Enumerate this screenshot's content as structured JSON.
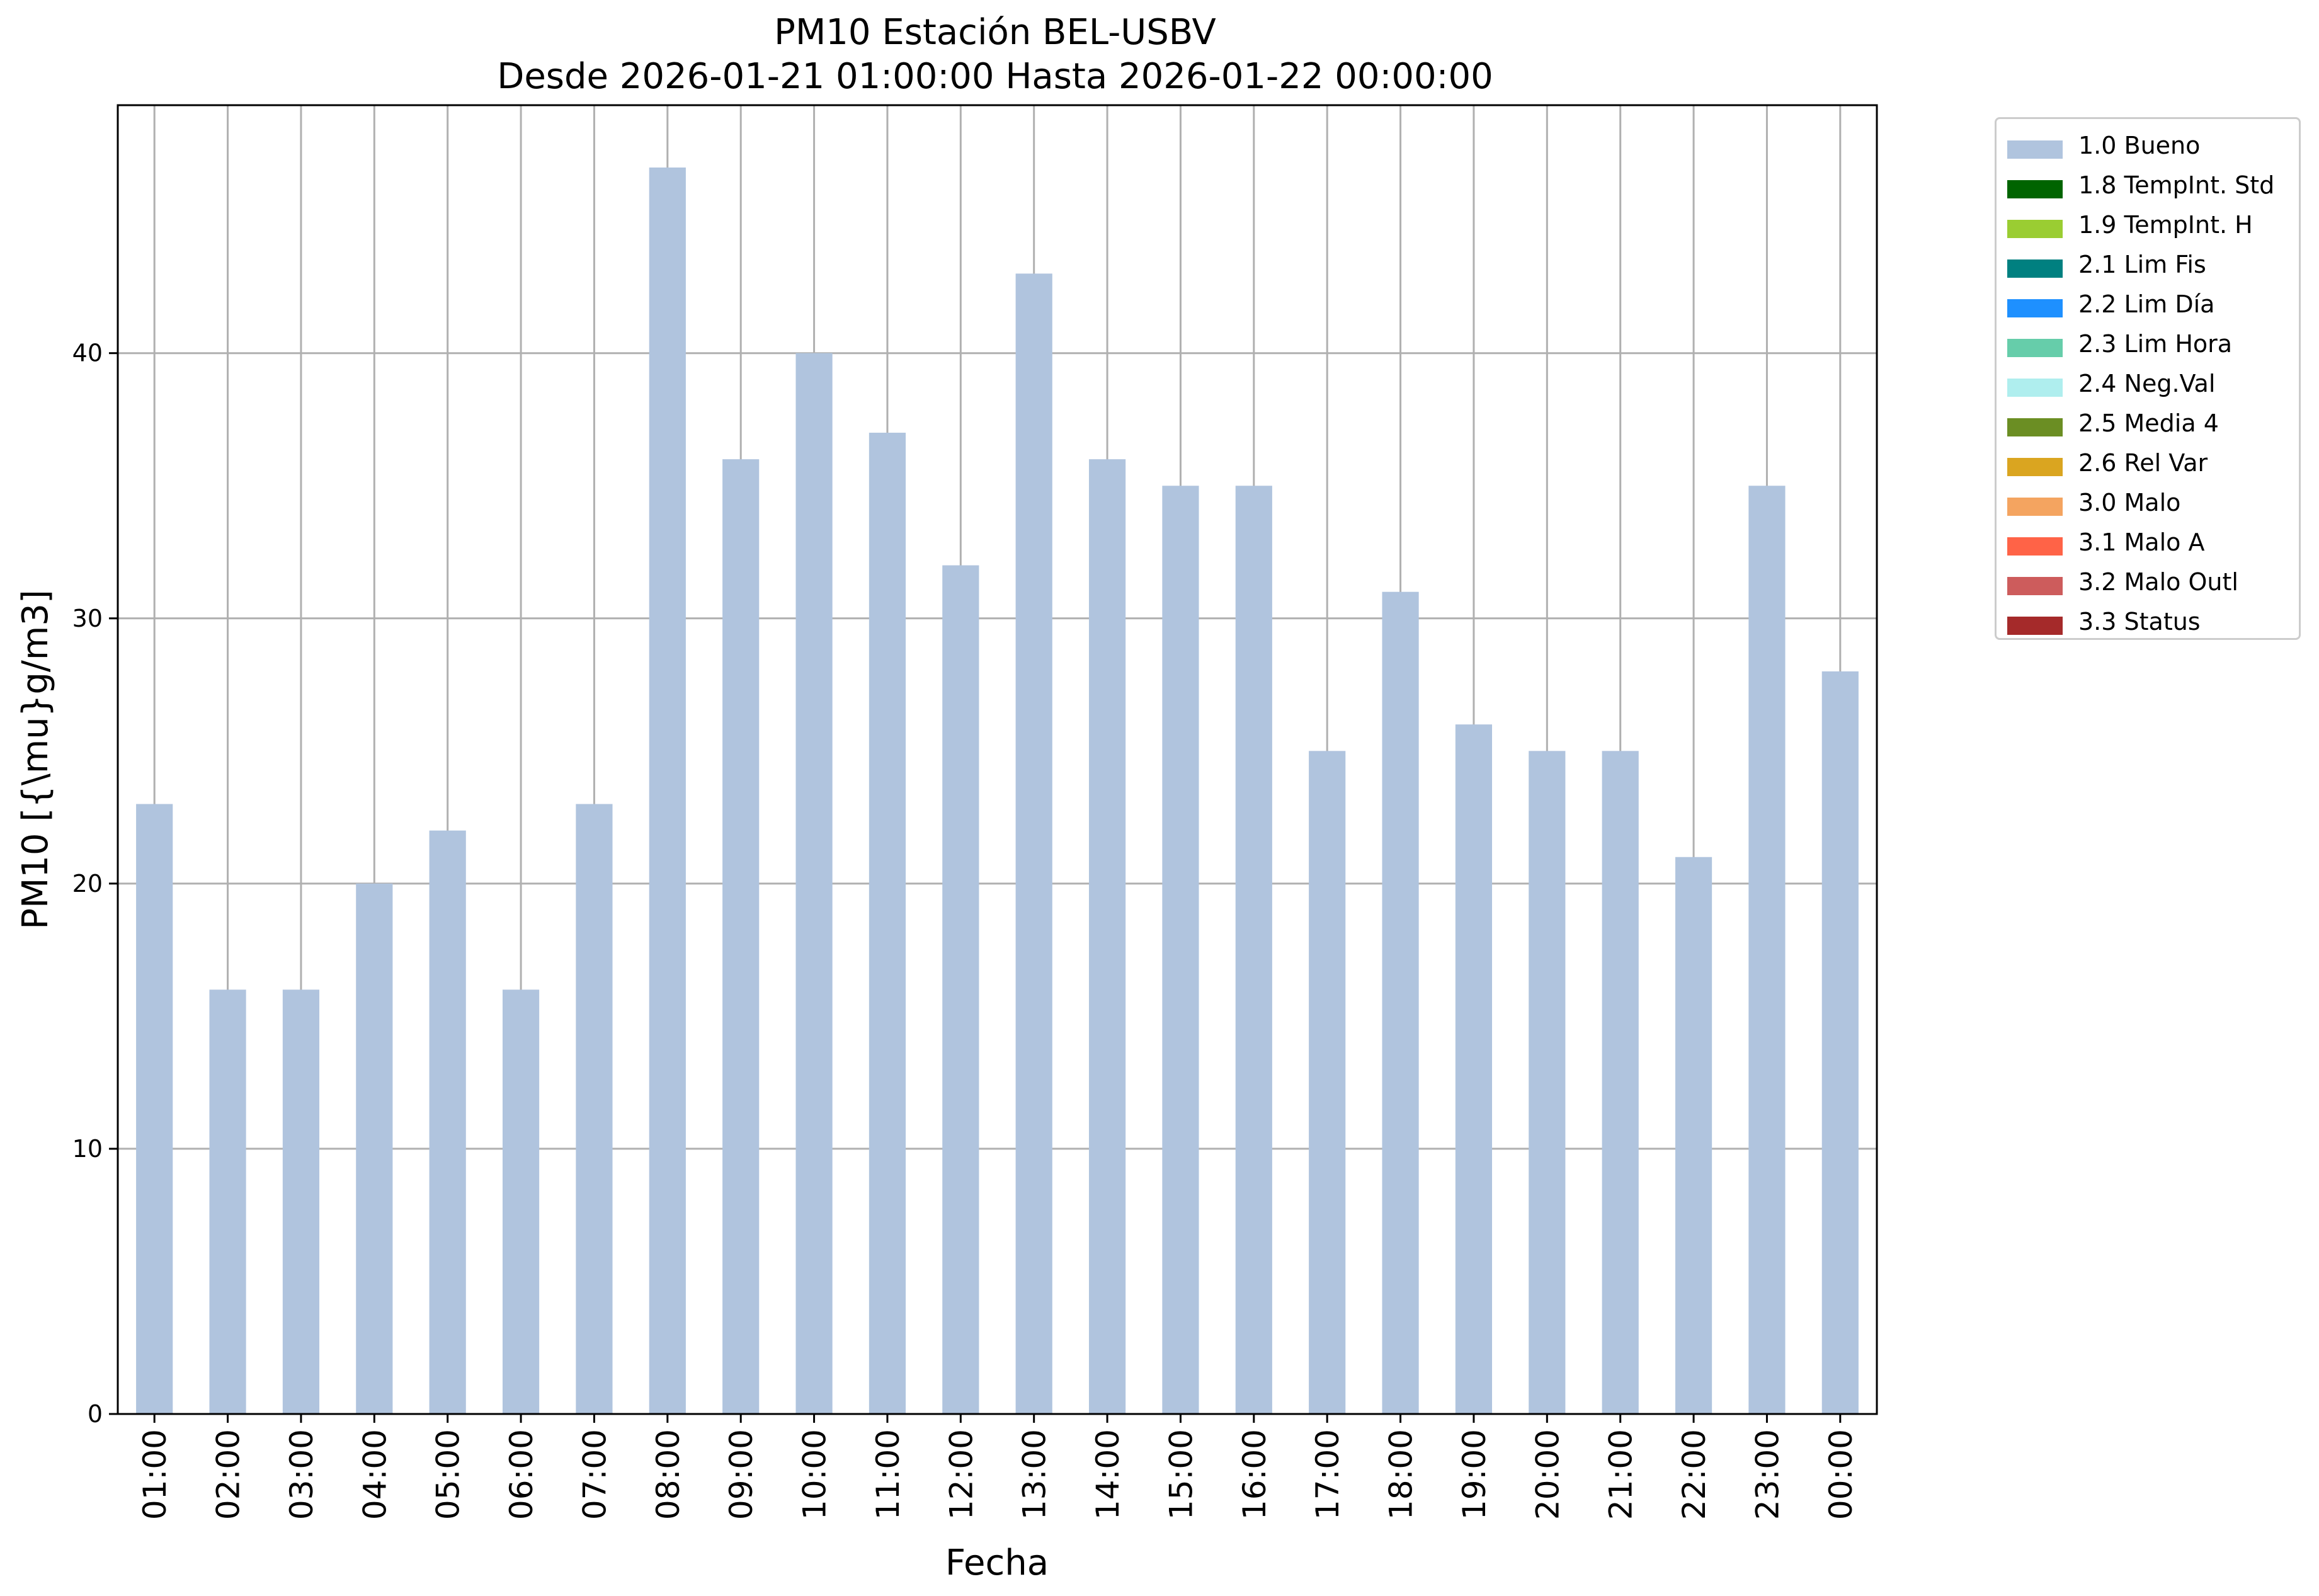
{
  "chart_data": {
    "type": "bar",
    "title": "PM10 Estación BEL-USBV",
    "subtitle": "Desde 2026-01-21 01:00:00 Hasta 2026-01-22 00:00:00",
    "xlabel": "Fecha",
    "ylabel": "PM10 [{\\mu}g/m3]",
    "categories": [
      "01:00",
      "02:00",
      "03:00",
      "04:00",
      "05:00",
      "06:00",
      "07:00",
      "08:00",
      "09:00",
      "10:00",
      "11:00",
      "12:00",
      "13:00",
      "14:00",
      "15:00",
      "16:00",
      "17:00",
      "18:00",
      "19:00",
      "20:00",
      "21:00",
      "22:00",
      "23:00",
      "00:00"
    ],
    "series": [
      {
        "name": "1.0 Bueno",
        "values": [
          23,
          16,
          16,
          20,
          22,
          16,
          23,
          47,
          36,
          40,
          37,
          32,
          43,
          36,
          35,
          35,
          25,
          31,
          26,
          25,
          25,
          21,
          35,
          28
        ]
      }
    ],
    "ylim": [
      0,
      49.35
    ],
    "yticks": [
      0,
      10,
      20,
      30,
      40
    ],
    "grid": true,
    "legend_position": "outside-top-right",
    "legend": [
      {
        "label": "1.0 Bueno",
        "color": "#b0c4de"
      },
      {
        "label": "1.8 TempInt. Std",
        "color": "#006400"
      },
      {
        "label": "1.9 TempInt. H",
        "color": "#9acd32"
      },
      {
        "label": "2.1 Lim Fis",
        "color": "#008080"
      },
      {
        "label": "2.2 Lim Día",
        "color": "#1e90ff"
      },
      {
        "label": "2.3 Lim Hora",
        "color": "#66cdaa"
      },
      {
        "label": "2.4 Neg.Val",
        "color": "#afeeee"
      },
      {
        "label": "2.5 Media 4",
        "color": "#6b8e23"
      },
      {
        "label": "2.6 Rel Var",
        "color": "#daa520"
      },
      {
        "label": "3.0 Malo",
        "color": "#f4a460"
      },
      {
        "label": "3.1 Malo A",
        "color": "#ff6347"
      },
      {
        "label": "3.2 Malo Outl",
        "color": "#cd5c5c"
      },
      {
        "label": "3.3 Status",
        "color": "#a52a2a"
      }
    ],
    "bar_color": "#b0c4de",
    "grid_color": "#b0b0b0"
  }
}
